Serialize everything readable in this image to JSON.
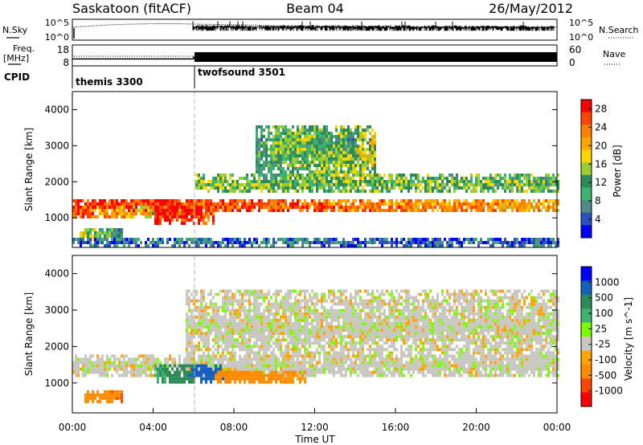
{
  "header": {
    "title": "Saskatoon (fitACF)",
    "beam": "Beam 04",
    "date": "26/May/2012"
  },
  "chart_data": [
    {
      "type": "line",
      "panel": "noise",
      "left_label": "N.Sky",
      "right_label": "N.Search",
      "left_ticks": [
        "10^5",
        "10^0"
      ],
      "right_ticks": [
        "10^5",
        "10^0"
      ],
      "ylim": [
        0,
        5
      ],
      "x": [
        0,
        1,
        2,
        3,
        4,
        5,
        6,
        7,
        8,
        9,
        10,
        11,
        12,
        13,
        14,
        15,
        16,
        17,
        18,
        19,
        20,
        21,
        22,
        24
      ],
      "series": [
        {
          "name": "N.Sky",
          "values": [
            3.2,
            3.6,
            3.9,
            4.1,
            4.2,
            4.2,
            4.1,
            4.0,
            3.9,
            3.8,
            3.6,
            3.6,
            3.5,
            3.5,
            3.4,
            3.4,
            3.3,
            3.3,
            3.3,
            3.2,
            3.2,
            3.2,
            3.2,
            3.3
          ]
        }
      ]
    },
    {
      "type": "line",
      "panel": "frequency-nave",
      "left_label": "Freq.",
      "left_unit": "[MHz]",
      "right_label": "Nave",
      "left_ticks": [
        "18",
        "8"
      ],
      "right_ticks": [
        "60",
        "0"
      ],
      "ylim": [
        8,
        18
      ],
      "x": [
        0,
        6,
        6,
        24
      ],
      "series": [
        {
          "name": "Freq.",
          "values": [
            11,
            11,
            12,
            12
          ]
        }
      ]
    },
    {
      "type": "table",
      "panel": "cpid",
      "label": "CPID",
      "modes": [
        {
          "name": "themis 3300",
          "start": 0,
          "end": 6
        },
        {
          "name": "twofsound 3501",
          "start": 6,
          "end": 24
        }
      ]
    },
    {
      "type": "heatmap",
      "panel": "power",
      "ylabel": "Slant Range [km]",
      "ylim": [
        180,
        4500
      ],
      "yticks": [
        1000,
        2000,
        3000,
        4000
      ],
      "colorbar": {
        "label": "Power [dB]",
        "ticks": [
          4,
          8,
          12,
          16,
          20,
          24,
          28
        ],
        "range": [
          0,
          30
        ],
        "colors": [
          "#0000ff",
          "#2a52be",
          "#4f8a8b",
          "#3cb371",
          "#2e8b57",
          "#9acd32",
          "#ffd700",
          "#ffa500",
          "#ff7f00",
          "#ff4500",
          "#ff0000"
        ]
      },
      "features": [
        {
          "x": [
            0,
            24
          ],
          "range": [
            1100,
            1500
          ],
          "power": [
            28,
            20
          ]
        },
        {
          "x": [
            0,
            5.5
          ],
          "range": [
            900,
            1300
          ],
          "power": [
            26,
            14
          ]
        },
        {
          "x": [
            4,
            7
          ],
          "range": [
            750,
            1450
          ],
          "power": [
            30,
            24
          ]
        },
        {
          "x": [
            6,
            24
          ],
          "range": [
            1650,
            2150
          ],
          "power": [
            14,
            12
          ]
        },
        {
          "x": [
            9,
            15
          ],
          "range": [
            1900,
            3500
          ],
          "power": [
            10,
            16
          ]
        },
        {
          "x": [
            10,
            14
          ],
          "range": [
            2700,
            3400
          ],
          "power": [
            14,
            10
          ]
        },
        {
          "x": [
            0.3,
            2.5
          ],
          "range": [
            300,
            700
          ],
          "power": [
            16,
            8
          ]
        },
        {
          "x": [
            0,
            24
          ],
          "range": [
            180,
            420
          ],
          "power": [
            6,
            4
          ]
        }
      ]
    },
    {
      "type": "heatmap",
      "panel": "velocity",
      "ylabel": "Slant Range [km]",
      "xlabel": "Time UT",
      "ylim": [
        180,
        4500
      ],
      "yticks": [
        1000,
        2000,
        3000,
        4000
      ],
      "xticks": [
        "00:00",
        "04:00",
        "08:00",
        "12:00",
        "16:00",
        "20:00",
        "00:00"
      ],
      "xlim": [
        0,
        24
      ],
      "colorbar": {
        "label": "Velocity [m s^-1]",
        "ticks": [
          "1000",
          "500",
          "100",
          "25",
          "-25",
          "-100",
          "-500",
          "-1000"
        ],
        "colors": [
          "#0000ff",
          "#1560bd",
          "#2e8b57",
          "#3cb371",
          "#7cfc00",
          "#c8c8c0",
          "#ffa500",
          "#ff8c00",
          "#ff4500",
          "#ff0000"
        ]
      },
      "features": [
        {
          "x": [
            0,
            24
          ],
          "range": [
            1100,
            1700
          ],
          "velocity": [
            0,
            0
          ]
        },
        {
          "x": [
            5.5,
            24
          ],
          "range": [
            1500,
            3500
          ],
          "velocity": [
            0,
            0
          ]
        },
        {
          "x": [
            4,
            7.5
          ],
          "range": [
            900,
            1500
          ],
          "velocity": [
            150,
            600
          ]
        },
        {
          "x": [
            7,
            11.5
          ],
          "range": [
            900,
            1300
          ],
          "velocity": [
            -200,
            -120
          ]
        },
        {
          "x": [
            0.5,
            2.5
          ],
          "range": [
            400,
            800
          ],
          "velocity": [
            -200,
            -300
          ]
        }
      ]
    }
  ]
}
